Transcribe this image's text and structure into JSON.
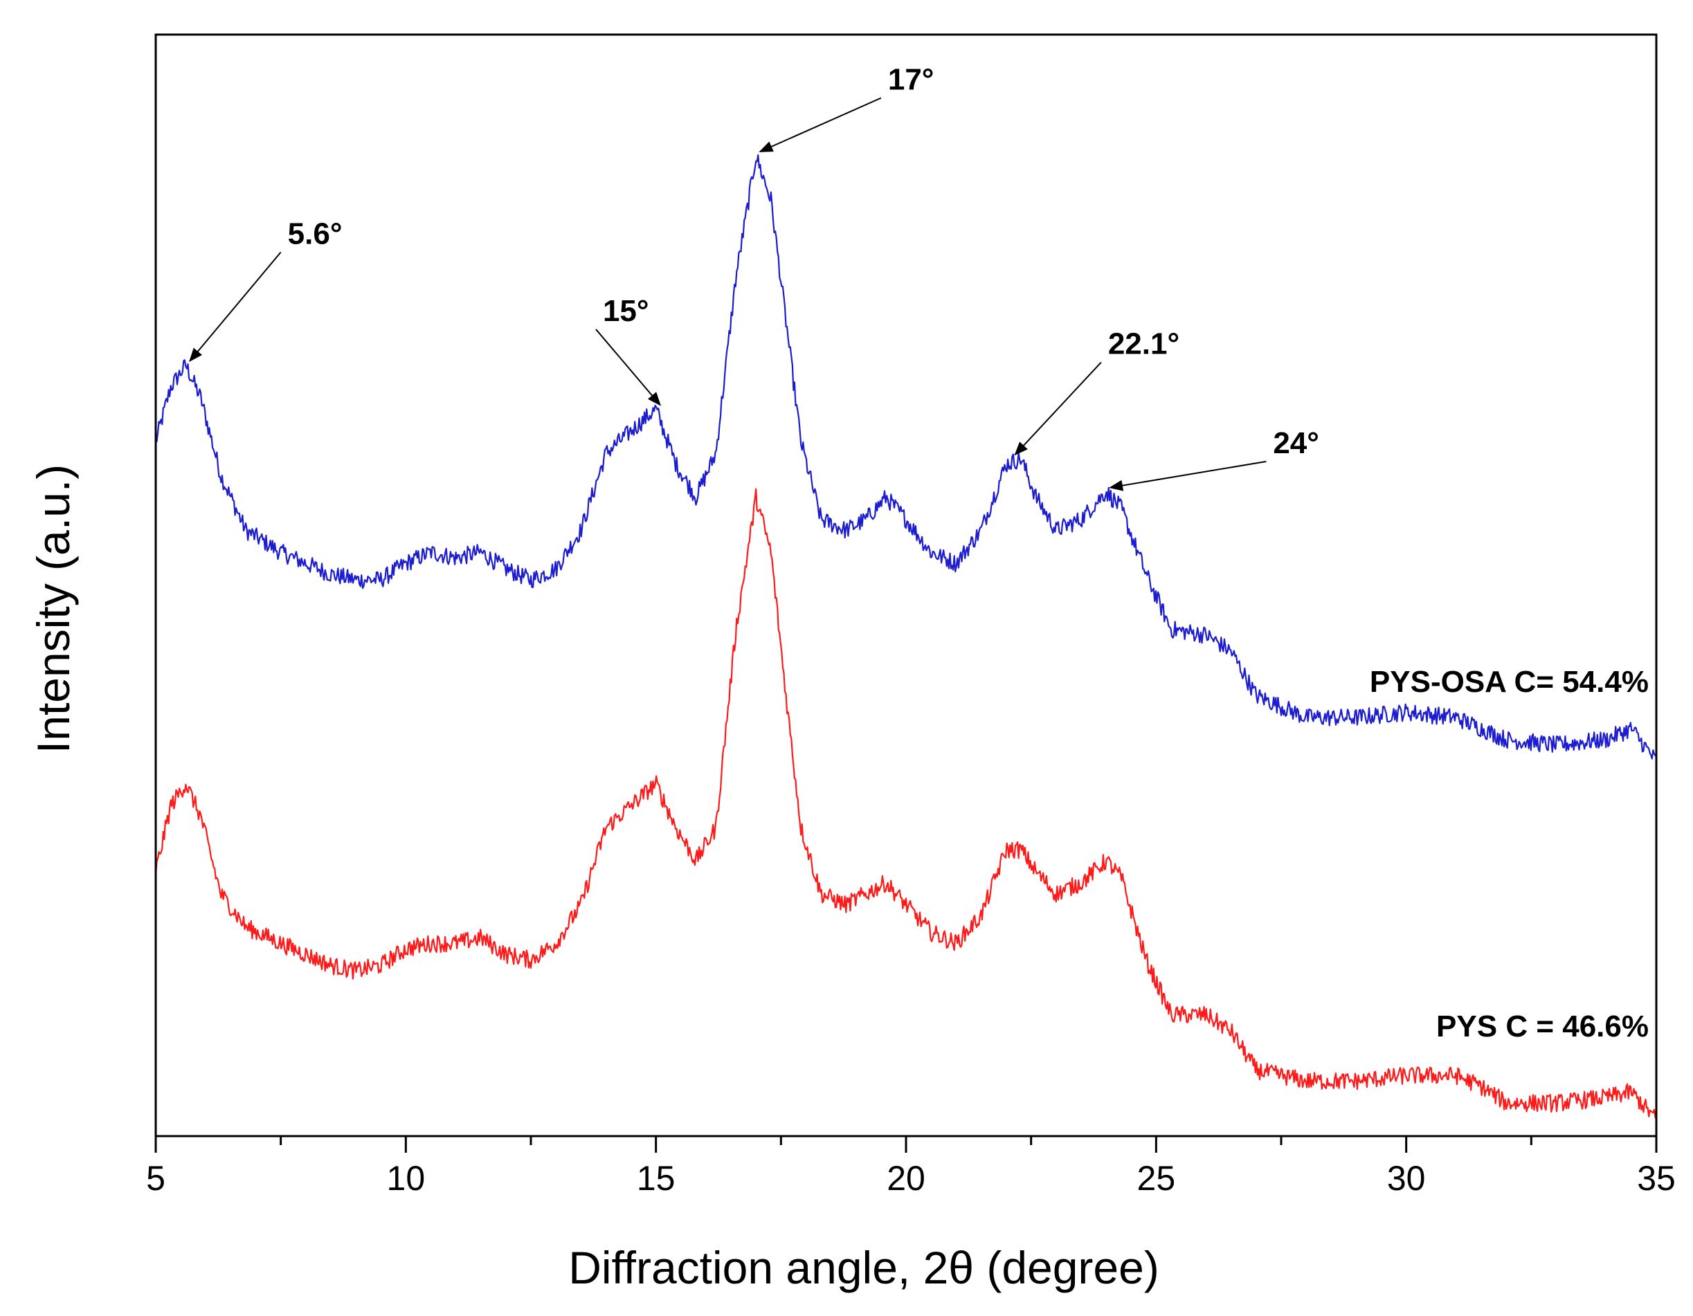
{
  "chart_data": {
    "type": "line",
    "title": "",
    "xlabel": "Diffraction angle, 2θ (degree)",
    "ylabel": "Intensity (a.u.)",
    "xlim": [
      5,
      35
    ],
    "ylim": [
      0,
      100
    ],
    "xticks": [
      "5",
      "10",
      "15",
      "20",
      "25",
      "30",
      "35"
    ],
    "grid": false,
    "series": [
      {
        "name": "PYS-OSA",
        "label": "PYS-OSA  C= 54.4%",
        "color": "#1c1cd0",
        "points": [
          [
            5,
            63
          ],
          [
            5.3,
            68
          ],
          [
            5.6,
            70
          ],
          [
            5.9,
            67
          ],
          [
            6.3,
            60
          ],
          [
            6.8,
            55
          ],
          [
            7.5,
            53
          ],
          [
            8,
            52
          ],
          [
            8.5,
            51
          ],
          [
            9,
            50.5
          ],
          [
            9.5,
            50.5
          ],
          [
            10,
            52
          ],
          [
            10.5,
            53
          ],
          [
            11,
            52.5
          ],
          [
            11.5,
            53
          ],
          [
            12,
            51.5
          ],
          [
            12.5,
            50.5
          ],
          [
            13,
            51.5
          ],
          [
            13.5,
            55
          ],
          [
            14,
            62
          ],
          [
            14.5,
            64
          ],
          [
            15,
            66
          ],
          [
            15.4,
            61
          ],
          [
            15.8,
            58
          ],
          [
            16.2,
            62
          ],
          [
            16.6,
            78
          ],
          [
            17,
            89
          ],
          [
            17.3,
            85
          ],
          [
            17.6,
            74
          ],
          [
            17.9,
            63
          ],
          [
            18.3,
            56
          ],
          [
            18.8,
            55
          ],
          [
            19.2,
            56
          ],
          [
            19.6,
            58
          ],
          [
            20,
            56
          ],
          [
            20.5,
            53
          ],
          [
            21,
            52
          ],
          [
            21.5,
            55
          ],
          [
            22,
            61
          ],
          [
            22.3,
            61.5
          ],
          [
            22.6,
            58
          ],
          [
            23,
            55
          ],
          [
            23.5,
            56
          ],
          [
            24,
            58.5
          ],
          [
            24.3,
            57
          ],
          [
            24.8,
            51
          ],
          [
            25.3,
            46
          ],
          [
            26,
            45.5
          ],
          [
            26.5,
            44
          ],
          [
            27,
            40
          ],
          [
            28,
            38
          ],
          [
            29,
            38
          ],
          [
            30,
            38.5
          ],
          [
            31,
            38
          ],
          [
            31.5,
            37
          ],
          [
            32,
            36
          ],
          [
            33,
            35.5
          ],
          [
            34,
            36
          ],
          [
            34.5,
            37
          ],
          [
            35,
            34
          ]
        ]
      },
      {
        "name": "PYS",
        "label": "PYS  C = 46.6%",
        "color": "#ff1a1a",
        "points": [
          [
            5,
            24
          ],
          [
            5.3,
            30
          ],
          [
            5.6,
            32
          ],
          [
            5.9,
            29
          ],
          [
            6.3,
            22
          ],
          [
            6.8,
            19
          ],
          [
            7.5,
            17.5
          ],
          [
            8,
            16.5
          ],
          [
            8.5,
            15.5
          ],
          [
            9,
            15
          ],
          [
            9.5,
            15.5
          ],
          [
            10,
            17
          ],
          [
            10.5,
            17.5
          ],
          [
            11,
            17.5
          ],
          [
            11.5,
            18
          ],
          [
            12,
            16.5
          ],
          [
            12.5,
            16
          ],
          [
            13,
            17.5
          ],
          [
            13.5,
            21
          ],
          [
            14,
            28
          ],
          [
            14.5,
            30
          ],
          [
            15,
            32
          ],
          [
            15.4,
            28
          ],
          [
            15.8,
            25
          ],
          [
            16.2,
            28
          ],
          [
            16.6,
            46
          ],
          [
            17,
            58
          ],
          [
            17.3,
            53
          ],
          [
            17.6,
            40
          ],
          [
            17.9,
            28
          ],
          [
            18.3,
            22
          ],
          [
            18.8,
            21
          ],
          [
            19.2,
            22
          ],
          [
            19.6,
            23
          ],
          [
            20,
            21
          ],
          [
            20.5,
            18.5
          ],
          [
            21,
            17.5
          ],
          [
            21.5,
            20
          ],
          [
            22,
            26
          ],
          [
            22.3,
            26
          ],
          [
            22.6,
            24
          ],
          [
            23,
            22
          ],
          [
            23.5,
            23
          ],
          [
            24,
            25
          ],
          [
            24.3,
            23.5
          ],
          [
            24.8,
            16
          ],
          [
            25.3,
            11
          ],
          [
            26,
            11
          ],
          [
            26.5,
            9.5
          ],
          [
            27,
            6
          ],
          [
            28,
            5
          ],
          [
            29,
            5
          ],
          [
            30,
            5.5
          ],
          [
            31,
            5.5
          ],
          [
            31.5,
            4.5
          ],
          [
            32,
            3
          ],
          [
            33,
            3
          ],
          [
            34,
            3.5
          ],
          [
            34.5,
            4
          ],
          [
            35,
            1.5
          ]
        ]
      }
    ],
    "annotations": [
      {
        "text": "5.6°",
        "x": 5.6,
        "y": 70,
        "tx": 7.5,
        "ty": 81
      },
      {
        "text": "15°",
        "x": 15.0,
        "y": 66,
        "tx": 13.8,
        "ty": 74
      },
      {
        "text": "17°",
        "x": 17.0,
        "y": 89,
        "tx": 19.5,
        "ty": 95
      },
      {
        "text": "22.1°",
        "x": 22.1,
        "y": 61.5,
        "tx": 23.9,
        "ty": 71
      },
      {
        "text": "24°",
        "x": 24.0,
        "y": 58.5,
        "tx": 27.2,
        "ty": 62
      }
    ]
  }
}
